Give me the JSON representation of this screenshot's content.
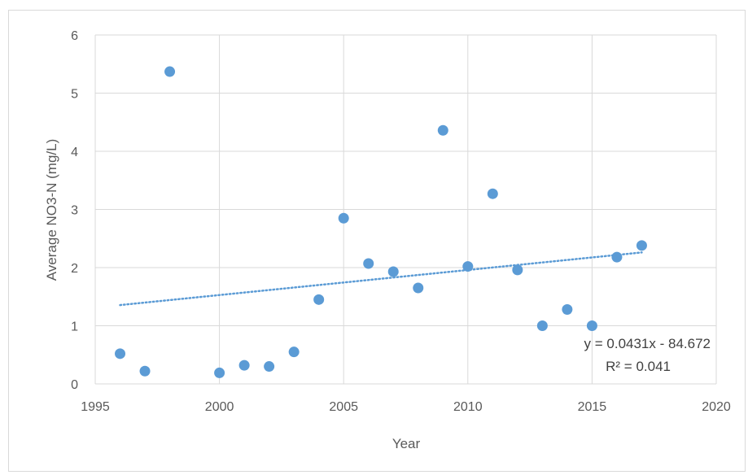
{
  "chart_data": {
    "type": "scatter",
    "title": "",
    "xlabel": "Year",
    "ylabel": "Average NO3-N (mg/L)",
    "xlim": [
      1995,
      2020
    ],
    "ylim": [
      0,
      6
    ],
    "x_ticks": [
      1995,
      2000,
      2005,
      2010,
      2015,
      2020
    ],
    "y_ticks": [
      0,
      1,
      2,
      3,
      4,
      5,
      6
    ],
    "grid": true,
    "legend": "none",
    "series": [
      {
        "color": "#5b9bd5",
        "points": [
          {
            "x": 1996,
            "y": 0.52
          },
          {
            "x": 1997,
            "y": 0.22
          },
          {
            "x": 1998,
            "y": 5.37
          },
          {
            "x": 2000,
            "y": 0.19
          },
          {
            "x": 2001,
            "y": 0.32
          },
          {
            "x": 2002,
            "y": 0.3
          },
          {
            "x": 2003,
            "y": 0.55
          },
          {
            "x": 2004,
            "y": 1.45
          },
          {
            "x": 2005,
            "y": 2.85
          },
          {
            "x": 2006,
            "y": 2.07
          },
          {
            "x": 2007,
            "y": 1.93
          },
          {
            "x": 2008,
            "y": 1.65
          },
          {
            "x": 2009,
            "y": 4.36
          },
          {
            "x": 2010,
            "y": 2.02
          },
          {
            "x": 2011,
            "y": 3.27
          },
          {
            "x": 2012,
            "y": 1.96
          },
          {
            "x": 2013,
            "y": 1.0
          },
          {
            "x": 2014,
            "y": 1.28
          },
          {
            "x": 2015,
            "y": 1.0
          },
          {
            "x": 2016,
            "y": 2.18
          },
          {
            "x": 2017,
            "y": 2.38
          }
        ]
      }
    ],
    "trendline": {
      "type": "linear",
      "style": "dotted",
      "color": "#5b9bd5",
      "slope": 0.0431,
      "intercept": -84.672,
      "x_range": [
        1996,
        2017
      ],
      "equation_text": "y = 0.0431x - 84.672",
      "r2_text": "R² = 0.041"
    },
    "colors": {
      "marker": "#5b9bd5",
      "grid": "#d9d9d9",
      "text": "#595959"
    }
  }
}
